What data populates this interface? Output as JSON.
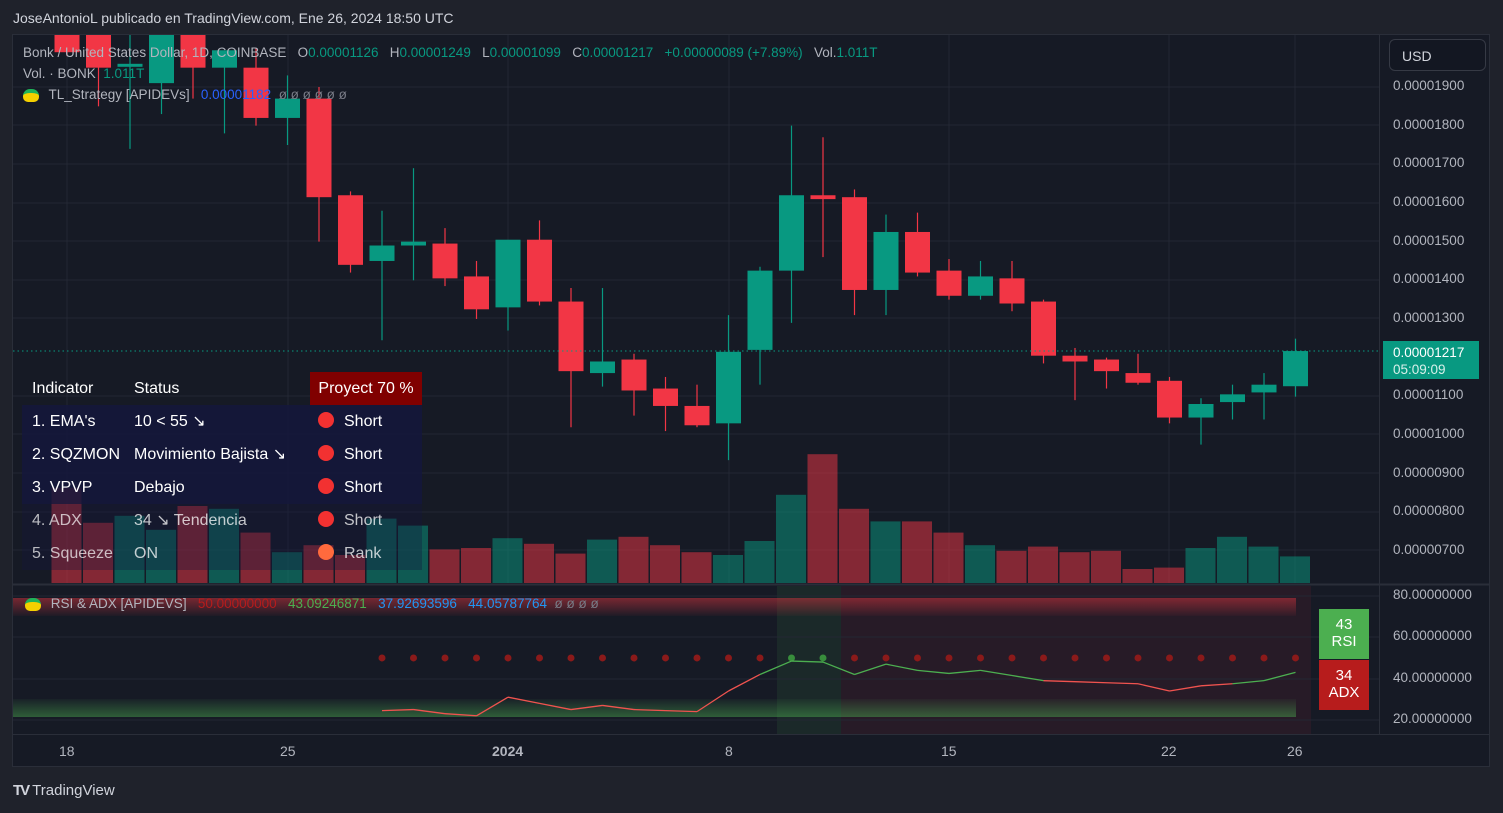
{
  "header": {
    "title": "JoseAntonioL publicado en TradingView.com, Ene 26, 2024 18:50 UTC"
  },
  "legend": {
    "symbol": "Bonk / United States Dollar, 1D, COINBASE",
    "o_label": "O",
    "o": "0.00001126",
    "h_label": "H",
    "h": "0.00001249",
    "l_label": "L",
    "l": "0.00001099",
    "c_label": "C",
    "c": "0.00001217",
    "change": "+0.00000089 (+7.89%)",
    "vol_label": "Vol.",
    "vol": "1.011T",
    "vol_row_label": "Vol. · BONK",
    "vol_row_value": "1.011T",
    "strategy_label": "TL_Strategy [APIDEVs]",
    "strategy_value": "0.00001182",
    "strategy_nulls": "ø  ø  ø  ø  ø  ø"
  },
  "currency_button": "USD",
  "price_axis": [
    "0.00001900",
    "0.00001800",
    "0.00001700",
    "0.00001600",
    "0.00001500",
    "0.00001400",
    "0.00001300",
    "0.00001100",
    "0.00001000",
    "0.00000900",
    "0.00000800",
    "0.00000700"
  ],
  "last_price": {
    "value": "0.00001217",
    "countdown": "05:09:09"
  },
  "indicator_table": {
    "headers": {
      "indicator": "Indicator",
      "status": "Status",
      "proyect": "Proyect 70 %"
    },
    "rows": [
      {
        "indicator": "1. EMA's",
        "status": "10 < 55 ↘",
        "signal": "Short",
        "dot_color": "#f23131"
      },
      {
        "indicator": "2. SQZMON",
        "status": "Movimiento Bajista ↘",
        "signal": "Short",
        "dot_color": "#f23131"
      },
      {
        "indicator": "3. VPVP",
        "status": "Debajo",
        "signal": "Short",
        "dot_color": "#f23131"
      },
      {
        "indicator": "4. ADX",
        "status": "34 ↘ Tendencia",
        "signal": "Short",
        "dot_color": "#f23131"
      },
      {
        "indicator": "5. Squeeze",
        "status": "ON",
        "signal": "Rank",
        "dot_color": "#ff6a3d"
      }
    ]
  },
  "rsi_pane": {
    "label": "RSI & ADX [APIDEVS]",
    "v1": "50.00000000",
    "v2": "43.09246871",
    "v3": "37.92693596",
    "v4": "44.05787764",
    "nulls": "ø  ø  ø  ø",
    "axis": [
      "80.00000000",
      "60.00000000",
      "40.00000000",
      "20.00000000"
    ],
    "rsi_badge": {
      "value": "43",
      "label": "RSI",
      "color": "#4caf50"
    },
    "adx_badge": {
      "value": "34",
      "label": "ADX",
      "color": "#b71c1c"
    }
  },
  "time_axis": [
    "18",
    "25",
    "2024",
    "8",
    "15",
    "22",
    "26"
  ],
  "footer": {
    "brand": "TradingView"
  },
  "colors": {
    "up": "#089981",
    "down": "#f23645",
    "background": "#161a25"
  },
  "chart_data": {
    "type": "candlestick",
    "title": "Bonk / United States Dollar, 1D, COINBASE",
    "xlabel": "",
    "ylabel": "USD",
    "ylim": [
      6.4e-06,
      1.98e-05
    ],
    "x": [
      "Dec 18",
      "Dec 19",
      "Dec 20",
      "Dec 21",
      "Dec 22",
      "Dec 23",
      "Dec 24",
      "Dec 25",
      "Dec 26",
      "Dec 27",
      "Dec 28",
      "Dec 29",
      "Dec 30",
      "Dec 31",
      "Jan 1",
      "Jan 2",
      "Jan 3",
      "Jan 4",
      "Jan 5",
      "Jan 6",
      "Jan 7",
      "Jan 8",
      "Jan 9",
      "Jan 10",
      "Jan 11",
      "Jan 12",
      "Jan 13",
      "Jan 14",
      "Jan 15",
      "Jan 16",
      "Jan 17",
      "Jan 18",
      "Jan 19",
      "Jan 20",
      "Jan 21",
      "Jan 22",
      "Jan 23",
      "Jan 24",
      "Jan 25",
      "Jan 26"
    ],
    "candles": [
      {
        "o": 2.05e-05,
        "h": 2.1e-05,
        "l": 1.98e-05,
        "c": 1.99e-05
      },
      {
        "o": 2.1e-05,
        "h": 2.15e-05,
        "l": 1.85e-05,
        "c": 1.95e-05
      },
      {
        "o": 1.96e-05,
        "h": 2.1e-05,
        "l": 1.74e-05,
        "c": 1.96e-05
      },
      {
        "o": 1.91e-05,
        "h": 2.05e-05,
        "l": 1.83e-05,
        "c": 2.05e-05
      },
      {
        "o": 2.06e-05,
        "h": 2.12e-05,
        "l": 1.87e-05,
        "c": 1.95e-05
      },
      {
        "o": 1.95e-05,
        "h": 1.99e-05,
        "l": 1.78e-05,
        "c": 1.995e-05
      },
      {
        "o": 1.95e-05,
        "h": 2e-05,
        "l": 1.8e-05,
        "c": 1.82e-05
      },
      {
        "o": 1.82e-05,
        "h": 1.93e-05,
        "l": 1.75e-05,
        "c": 1.87e-05
      },
      {
        "o": 1.87e-05,
        "h": 1.9e-05,
        "l": 1.5e-05,
        "c": 1.615e-05
      },
      {
        "o": 1.62e-05,
        "h": 1.63e-05,
        "l": 1.42e-05,
        "c": 1.44e-05
      },
      {
        "o": 1.45e-05,
        "h": 1.58e-05,
        "l": 1.245e-05,
        "c": 1.49e-05
      },
      {
        "o": 1.49e-05,
        "h": 1.69e-05,
        "l": 1.4e-05,
        "c": 1.5e-05
      },
      {
        "o": 1.495e-05,
        "h": 1.535e-05,
        "l": 1.385e-05,
        "c": 1.405e-05
      },
      {
        "o": 1.41e-05,
        "h": 1.45e-05,
        "l": 1.3e-05,
        "c": 1.325e-05
      },
      {
        "o": 1.33e-05,
        "h": 1.5e-05,
        "l": 1.27e-05,
        "c": 1.505e-05
      },
      {
        "o": 1.505e-05,
        "h": 1.555e-05,
        "l": 1.335e-05,
        "c": 1.345e-05
      },
      {
        "o": 1.345e-05,
        "h": 1.38e-05,
        "l": 1.02e-05,
        "c": 1.165e-05
      },
      {
        "o": 1.16e-05,
        "h": 1.38e-05,
        "l": 1.125e-05,
        "c": 1.19e-05
      },
      {
        "o": 1.195e-05,
        "h": 1.21e-05,
        "l": 1.05e-05,
        "c": 1.115e-05
      },
      {
        "o": 1.12e-05,
        "h": 1.15e-05,
        "l": 1.01e-05,
        "c": 1.075e-05
      },
      {
        "o": 1.075e-05,
        "h": 1.13e-05,
        "l": 1.02e-05,
        "c": 1.025e-05
      },
      {
        "o": 1.03e-05,
        "h": 1.31e-05,
        "l": 9.35e-06,
        "c": 1.215e-05
      },
      {
        "o": 1.22e-05,
        "h": 1.435e-05,
        "l": 1.13e-05,
        "c": 1.425e-05
      },
      {
        "o": 1.425e-05,
        "h": 1.8e-05,
        "l": 1.29e-05,
        "c": 1.62e-05
      },
      {
        "o": 1.62e-05,
        "h": 1.77e-05,
        "l": 1.46e-05,
        "c": 1.61e-05
      },
      {
        "o": 1.615e-05,
        "h": 1.635e-05,
        "l": 1.31e-05,
        "c": 1.375e-05
      },
      {
        "o": 1.375e-05,
        "h": 1.57e-05,
        "l": 1.31e-05,
        "c": 1.525e-05
      },
      {
        "o": 1.525e-05,
        "h": 1.575e-05,
        "l": 1.41e-05,
        "c": 1.42e-05
      },
      {
        "o": 1.425e-05,
        "h": 1.455e-05,
        "l": 1.35e-05,
        "c": 1.36e-05
      },
      {
        "o": 1.36e-05,
        "h": 1.45e-05,
        "l": 1.35e-05,
        "c": 1.41e-05
      },
      {
        "o": 1.405e-05,
        "h": 1.45e-05,
        "l": 1.32e-05,
        "c": 1.34e-05
      },
      {
        "o": 1.345e-05,
        "h": 1.35e-05,
        "l": 1.185e-05,
        "c": 1.205e-05
      },
      {
        "o": 1.205e-05,
        "h": 1.225e-05,
        "l": 1.09e-05,
        "c": 1.19e-05
      },
      {
        "o": 1.195e-05,
        "h": 1.2e-05,
        "l": 1.12e-05,
        "c": 1.165e-05
      },
      {
        "o": 1.16e-05,
        "h": 1.21e-05,
        "l": 1.13e-05,
        "c": 1.135e-05
      },
      {
        "o": 1.14e-05,
        "h": 1.15e-05,
        "l": 1.03e-05,
        "c": 1.045e-05
      },
      {
        "o": 1.045e-05,
        "h": 1.095e-05,
        "l": 9.75e-06,
        "c": 1.08e-05
      },
      {
        "o": 1.085e-05,
        "h": 1.13e-05,
        "l": 1.04e-05,
        "c": 1.105e-05
      },
      {
        "o": 1.11e-05,
        "h": 1.16e-05,
        "l": 1.04e-05,
        "c": 1.13e-05
      },
      {
        "o": 1.126e-05,
        "h": 1.249e-05,
        "l": 1.099e-05,
        "c": 1.217e-05
      }
    ],
    "volume_relative": [
      0.68,
      0.43,
      0.48,
      0.38,
      0.55,
      0.53,
      0.36,
      0.22,
      0.27,
      0.2,
      0.46,
      0.41,
      0.24,
      0.25,
      0.32,
      0.28,
      0.21,
      0.31,
      0.33,
      0.27,
      0.22,
      0.2,
      0.3,
      0.63,
      0.92,
      0.53,
      0.44,
      0.44,
      0.36,
      0.27,
      0.23,
      0.26,
      0.22,
      0.23,
      0.1,
      0.11,
      0.25,
      0.33,
      0.26,
      0.19
    ],
    "rsi": {
      "x_from": "Dec 28",
      "values": [
        24.5,
        25,
        23,
        22,
        31,
        28,
        25,
        27,
        25,
        24.5,
        24,
        34,
        42,
        48.5,
        48,
        42,
        47,
        44,
        42.5,
        44,
        41.5,
        39,
        38.5,
        38,
        37.5,
        34,
        36.5,
        37.5,
        39,
        43
      ]
    },
    "adx_dots_level": 50,
    "bands": {
      "overbought": [
        70,
        80
      ],
      "oversold": [
        20,
        30
      ]
    }
  }
}
